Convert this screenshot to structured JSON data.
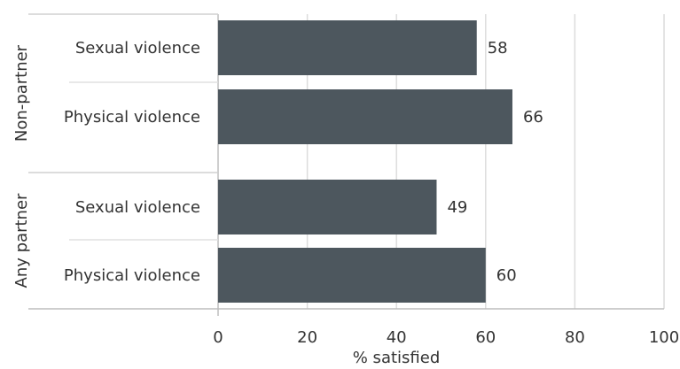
{
  "chart_data": {
    "type": "bar",
    "orientation": "horizontal",
    "xlabel": "% satisfied",
    "xlim": [
      0,
      100
    ],
    "xticks": [
      0,
      20,
      40,
      60,
      80,
      100
    ],
    "grid": true,
    "bar_color": "#4d575e",
    "groups": [
      {
        "label": "Non-partner",
        "categories": [
          "Sexual violence",
          "Physical violence"
        ],
        "values": [
          58,
          66
        ]
      },
      {
        "label": "Any partner",
        "categories": [
          "Sexual violence",
          "Physical violence"
        ],
        "values": [
          49,
          60
        ]
      }
    ]
  }
}
